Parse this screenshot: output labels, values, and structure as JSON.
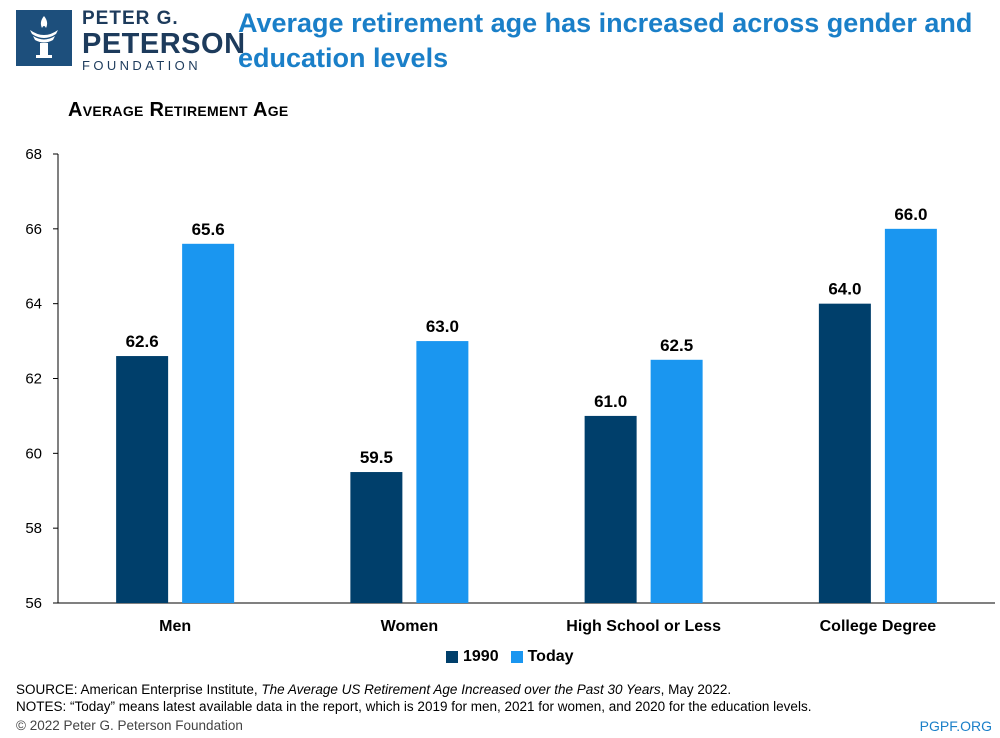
{
  "logo": {
    "line1": "PETER G.",
    "line2": "PETERSON",
    "line3": "FOUNDATION"
  },
  "header": {
    "title": "Average retirement age has increased across gender and education levels"
  },
  "footer": {
    "source_prefix": "SOURCE: American Enterprise Institute, ",
    "source_italic": "The Average US Retirement Age Increased over the Past 30 Years",
    "source_suffix": ", May 2022.",
    "notes": "NOTES: “Today” means latest available data in the report, which is 2019 for men, 2021 for women, and 2020 for the education levels.",
    "copyright": "© 2022 Peter G. Peterson Foundation",
    "site": "PGPF.ORG"
  },
  "colors": {
    "series_1990": "#003f6b",
    "series_today": "#1a96f0",
    "title": "#1a7fc8",
    "logo": "#1d4f7c"
  },
  "chart_data": {
    "type": "bar",
    "title": "Average Retirement Age",
    "categories": [
      "Men",
      "Women",
      "High School or Less",
      "College Degree"
    ],
    "series": [
      {
        "name": "1990",
        "values": [
          62.6,
          59.5,
          61.0,
          64.0
        ]
      },
      {
        "name": "Today",
        "values": [
          65.6,
          63.0,
          62.5,
          66.0
        ]
      }
    ],
    "ylim": [
      56,
      68
    ],
    "yticks": [
      "56",
      "58",
      "60",
      "62",
      "64",
      "66",
      "68"
    ],
    "grid": false,
    "legend": "bottom-center"
  }
}
